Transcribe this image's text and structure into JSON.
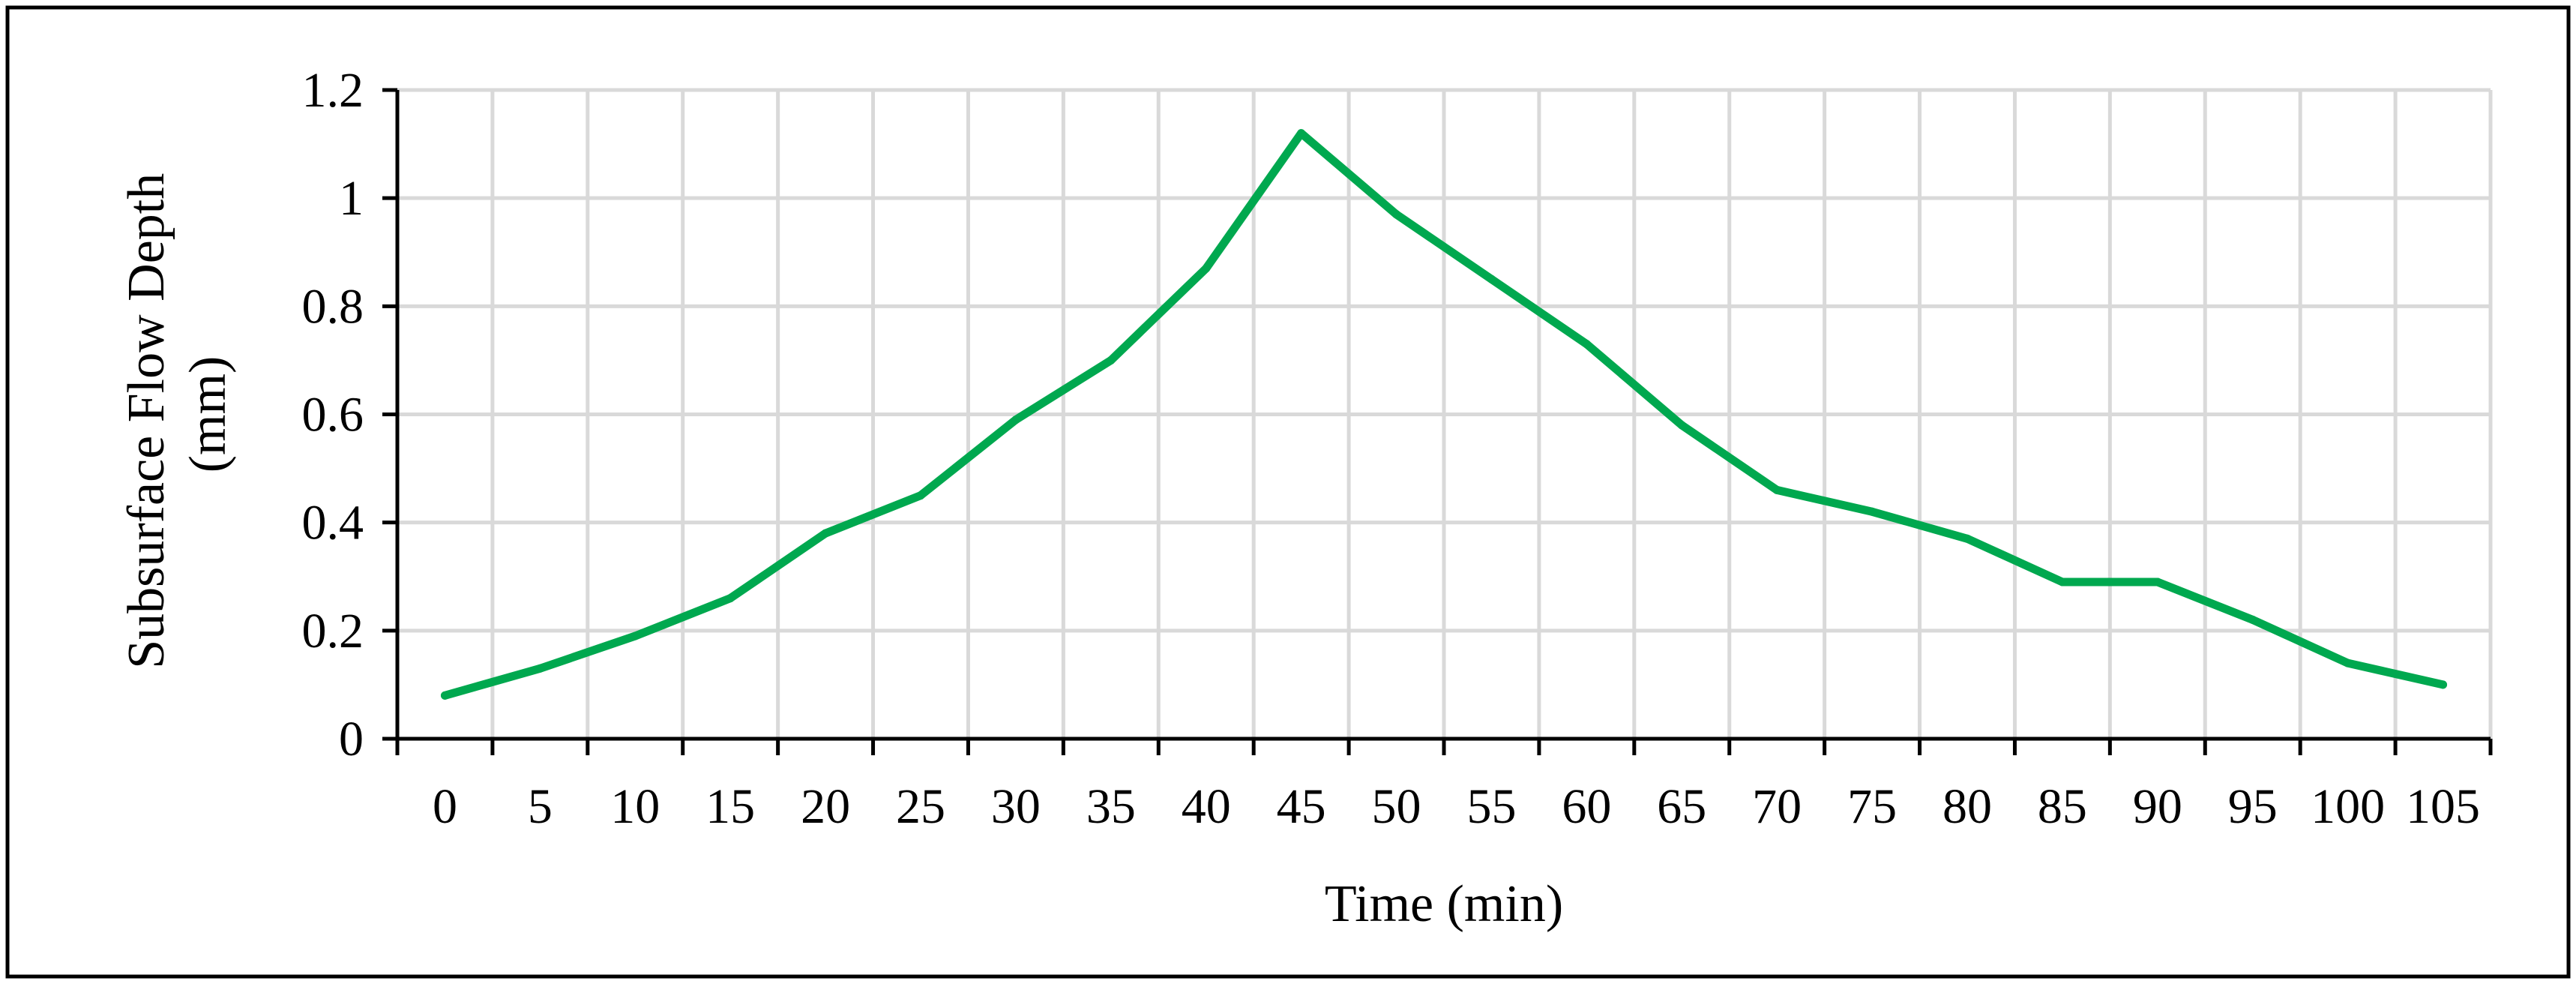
{
  "chart_data": {
    "type": "line",
    "title": "",
    "xlabel": "Time (min)",
    "ylabel_lines": [
      "Subsurface Flow Depth",
      "(mm)"
    ],
    "categories": [
      "0",
      "5",
      "10",
      "15",
      "20",
      "25",
      "30",
      "35",
      "40",
      "45",
      "50",
      "55",
      "60",
      "65",
      "70",
      "75",
      "80",
      "85",
      "90",
      "95",
      "100",
      "105"
    ],
    "series": [
      {
        "values": [
          0.08,
          0.13,
          0.19,
          0.26,
          0.38,
          0.45,
          0.59,
          0.7,
          0.87,
          1.12,
          0.97,
          0.85,
          0.73,
          0.58,
          0.46,
          0.42,
          0.37,
          0.29,
          0.29,
          0.22,
          0.14,
          0.1
        ],
        "color": "#00a84f"
      }
    ],
    "yticks": [
      "0",
      "0.2",
      "0.4",
      "0.6",
      "0.8",
      "1",
      "1.2"
    ],
    "ylim": [
      0,
      1.2
    ],
    "grid": true,
    "legend": "none",
    "colors": {
      "grid": "#d9d9d9",
      "axis": "#000000",
      "frame": "#000000"
    }
  }
}
